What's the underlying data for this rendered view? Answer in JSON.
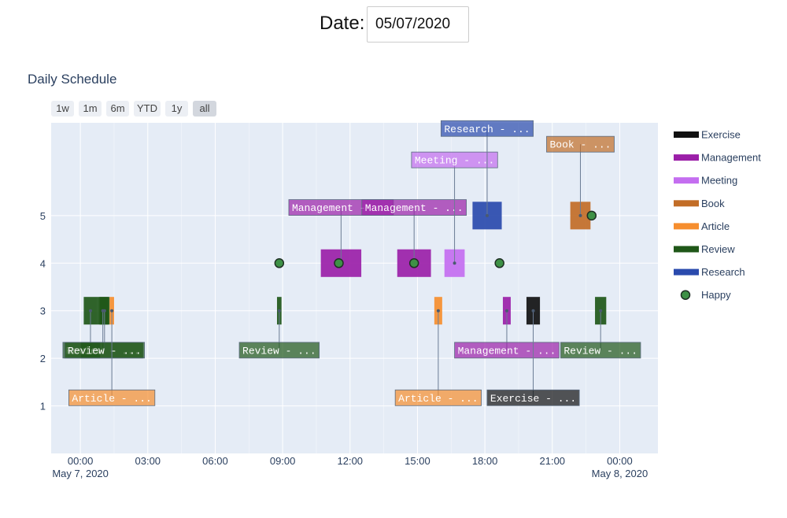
{
  "header": {
    "date_label": "Date:",
    "date_value": "05/07/2020"
  },
  "chart_data": {
    "type": "timeline",
    "title": "Daily Schedule",
    "range_buttons": [
      "1w",
      "1m",
      "6m",
      "YTD",
      "1y",
      "all"
    ],
    "active_range_button": "all",
    "x_axis": {
      "range_hours": [
        -1.3,
        25.7
      ],
      "ticks": [
        {
          "hour": 0,
          "label": "00:00",
          "sublabel": "May 7, 2020"
        },
        {
          "hour": 3,
          "label": "03:00"
        },
        {
          "hour": 6,
          "label": "06:00"
        },
        {
          "hour": 9,
          "label": "09:00"
        },
        {
          "hour": 12,
          "label": "12:00"
        },
        {
          "hour": 15,
          "label": "15:00"
        },
        {
          "hour": 18,
          "label": "18:00"
        },
        {
          "hour": 21,
          "label": "21:00"
        },
        {
          "hour": 24,
          "label": "00:00",
          "sublabel": "May 8, 2020"
        }
      ],
      "minor_grid_hours": [
        1.5,
        4.5,
        7.5,
        10.5,
        13.5,
        16.5,
        19.5,
        22.5
      ]
    },
    "y_axis": {
      "range": [
        0,
        6.95
      ],
      "ticks": [
        1,
        2,
        3,
        4,
        5
      ]
    },
    "legend": [
      {
        "name": "Exercise",
        "color": "#111111"
      },
      {
        "name": "Management",
        "color": "#9b1fa8"
      },
      {
        "name": "Meeting",
        "color": "#c46ef0"
      },
      {
        "name": "Book",
        "color": "#c26d27"
      },
      {
        "name": "Article",
        "color": "#f68e2e"
      },
      {
        "name": "Review",
        "color": "#1f5718"
      },
      {
        "name": "Research",
        "color": "#2a4aad"
      },
      {
        "name": "Happy",
        "color": "#3e9146",
        "marker": "circle"
      }
    ],
    "activities": [
      {
        "category": "Review",
        "start": 0.15,
        "end": 0.75,
        "mood": 3,
        "label": "Re",
        "label_y": 2.17
      },
      {
        "category": "Review",
        "start": 0.75,
        "end": 1.25,
        "mood": 3,
        "label": "Review - ...",
        "label_y": 2.17
      },
      {
        "category": "Review",
        "start": 0.85,
        "end": 1.3,
        "mood": 3,
        "label": "Review - ...",
        "label_y": 2.17
      },
      {
        "category": "Article",
        "start": 1.3,
        "end": 1.5,
        "mood": 3,
        "label": "Article - ...",
        "label_y": 1.17
      },
      {
        "category": "Review",
        "start": 8.75,
        "end": 8.95,
        "mood": 3,
        "label": "Review - ...",
        "label_y": 2.17
      },
      {
        "category": "Management",
        "start": 10.7,
        "end": 12.5,
        "mood": 4,
        "label": "Management - ...",
        "label_y": 5.17
      },
      {
        "category": "Management",
        "start": 14.1,
        "end": 15.6,
        "mood": 4,
        "label": "Management - ...",
        "label_y": 5.17
      },
      {
        "category": "Article",
        "start": 15.75,
        "end": 16.1,
        "mood": 3,
        "label": "Article - ...",
        "label_y": 1.17
      },
      {
        "category": "Meeting",
        "start": 16.2,
        "end": 17.1,
        "mood": 4,
        "label": "Meeting - ...",
        "label_y": 6.17
      },
      {
        "category": "Research",
        "start": 17.45,
        "end": 18.75,
        "mood": 5,
        "label": "Research - ...",
        "label_y": 6.83
      },
      {
        "category": "Management",
        "start": 18.8,
        "end": 19.15,
        "mood": 3,
        "label": "Management - ...",
        "label_y": 2.17
      },
      {
        "category": "Exercise",
        "start": 19.85,
        "end": 20.45,
        "mood": 3,
        "label": "Exercise - ...",
        "label_y": 1.17
      },
      {
        "category": "Book",
        "start": 21.8,
        "end": 22.7,
        "mood": 5,
        "label": "Book - ...",
        "label_y": 6.5
      },
      {
        "category": "Review",
        "start": 22.9,
        "end": 23.4,
        "mood": 3,
        "label": "Review - ...",
        "label_y": 2.17
      }
    ],
    "happy_points": [
      {
        "hour": 8.85,
        "mood": 4
      },
      {
        "hour": 11.5,
        "mood": 4
      },
      {
        "hour": 14.85,
        "mood": 4
      },
      {
        "hour": 18.65,
        "mood": 4
      },
      {
        "hour": 22.75,
        "mood": 5
      }
    ]
  }
}
